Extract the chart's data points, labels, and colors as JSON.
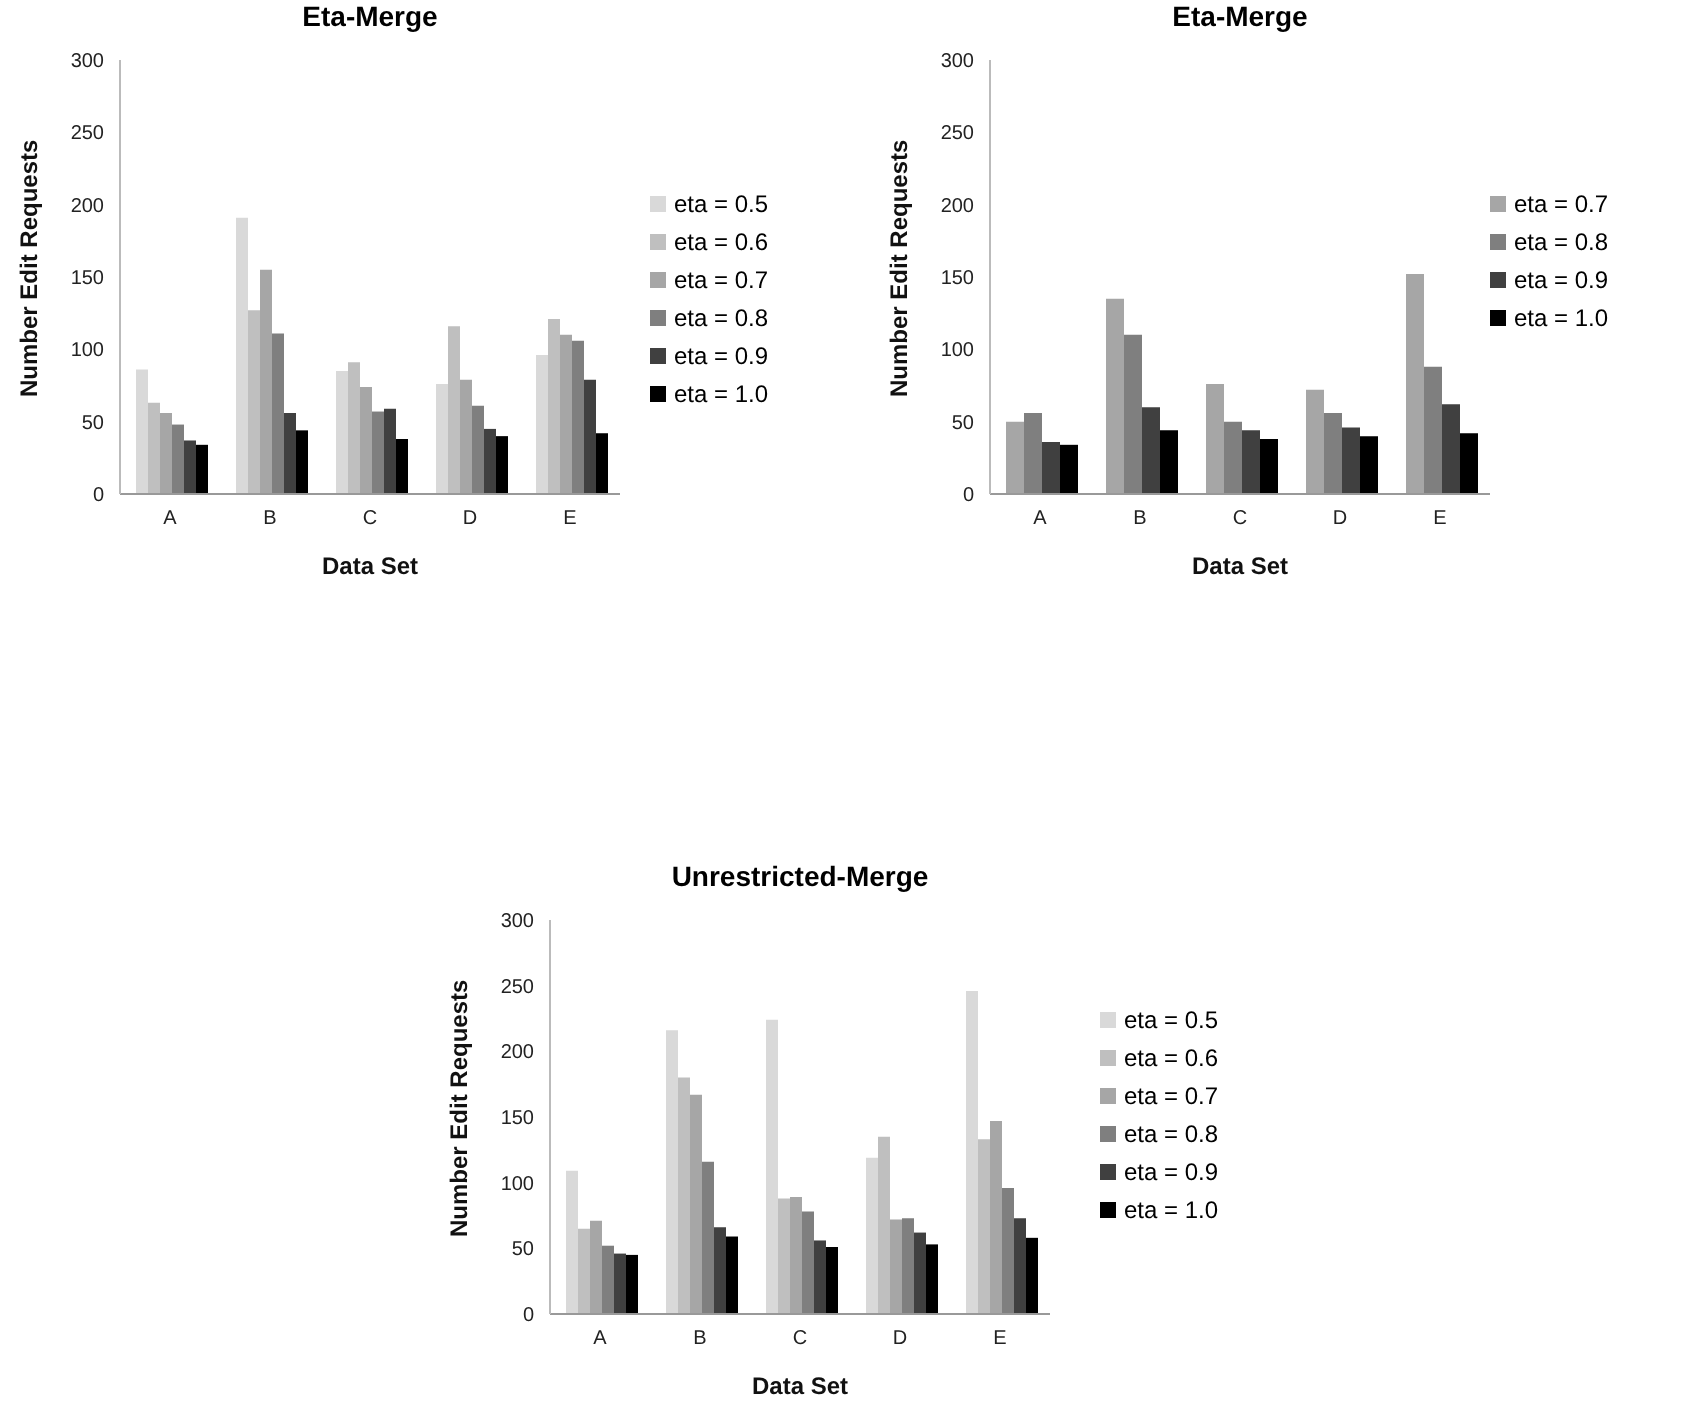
{
  "chart_data": [
    {
      "type": "bar",
      "title": "Eta-Merge",
      "xlabel": "Data Set",
      "ylabel": "Number Edit Requests",
      "categories": [
        "A",
        "B",
        "C",
        "D",
        "E"
      ],
      "ylim": [
        0,
        300
      ],
      "yticks": [
        0,
        50,
        100,
        150,
        200,
        250,
        300
      ],
      "grid": false,
      "legend": "right",
      "series": [
        {
          "name": "eta = 0.5",
          "color": "#d9d9d9",
          "values": [
            86,
            191,
            85,
            76,
            96
          ]
        },
        {
          "name": "eta = 0.6",
          "color": "#bfbfbf",
          "values": [
            63,
            127,
            91,
            116,
            121
          ]
        },
        {
          "name": "eta = 0.7",
          "color": "#a6a6a6",
          "values": [
            56,
            155,
            74,
            79,
            110
          ]
        },
        {
          "name": "eta = 0.8",
          "color": "#7f7f7f",
          "values": [
            48,
            111,
            57,
            61,
            106
          ]
        },
        {
          "name": "eta = 0.9",
          "color": "#404040",
          "values": [
            37,
            56,
            59,
            45,
            79
          ]
        },
        {
          "name": "eta = 1.0",
          "color": "#000000",
          "values": [
            34,
            44,
            38,
            40,
            42
          ]
        }
      ]
    },
    {
      "type": "bar",
      "title": "Eta-Merge",
      "xlabel": "Data Set",
      "ylabel": "Number Edit Requests",
      "categories": [
        "A",
        "B",
        "C",
        "D",
        "E"
      ],
      "ylim": [
        0,
        300
      ],
      "yticks": [
        0,
        50,
        100,
        150,
        200,
        250,
        300
      ],
      "grid": false,
      "legend": "right",
      "series": [
        {
          "name": "eta = 0.7",
          "color": "#a6a6a6",
          "values": [
            50,
            135,
            76,
            72,
            152
          ]
        },
        {
          "name": "eta = 0.8",
          "color": "#7f7f7f",
          "values": [
            56,
            110,
            50,
            56,
            88
          ]
        },
        {
          "name": "eta = 0.9",
          "color": "#404040",
          "values": [
            36,
            60,
            44,
            46,
            62
          ]
        },
        {
          "name": "eta = 1.0",
          "color": "#000000",
          "values": [
            34,
            44,
            38,
            40,
            42
          ]
        }
      ]
    },
    {
      "type": "bar",
      "title": "Unrestricted-Merge",
      "xlabel": "Data Set",
      "ylabel": "Number Edit Requests",
      "categories": [
        "A",
        "B",
        "C",
        "D",
        "E"
      ],
      "ylim": [
        0,
        300
      ],
      "yticks": [
        0,
        50,
        100,
        150,
        200,
        250,
        300
      ],
      "grid": false,
      "legend": "right",
      "series": [
        {
          "name": "eta = 0.5",
          "color": "#d9d9d9",
          "values": [
            109,
            216,
            224,
            119,
            246
          ]
        },
        {
          "name": "eta = 0.6",
          "color": "#bfbfbf",
          "values": [
            65,
            180,
            88,
            135,
            133
          ]
        },
        {
          "name": "eta = 0.7",
          "color": "#a6a6a6",
          "values": [
            71,
            167,
            89,
            72,
            147
          ]
        },
        {
          "name": "eta = 0.8",
          "color": "#7f7f7f",
          "values": [
            52,
            116,
            78,
            73,
            96
          ]
        },
        {
          "name": "eta = 0.9",
          "color": "#404040",
          "values": [
            46,
            66,
            56,
            62,
            73
          ]
        },
        {
          "name": "eta = 1.0",
          "color": "#000000",
          "values": [
            45,
            59,
            51,
            53,
            58
          ]
        }
      ]
    }
  ]
}
